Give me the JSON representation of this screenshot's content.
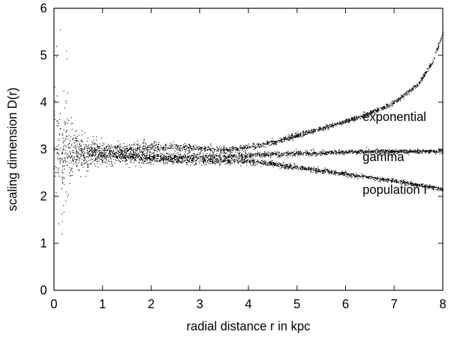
{
  "chart_data": {
    "type": "scatter",
    "title": "",
    "xlabel": "radial distance r in kpc",
    "ylabel": "scaling dimension D(r)",
    "xlim": [
      0,
      8
    ],
    "ylim": [
      0,
      6
    ],
    "xticks": [
      "0",
      "1",
      "2",
      "3",
      "4",
      "5",
      "6",
      "7",
      "8"
    ],
    "yticks": [
      "0",
      "1",
      "2",
      "3",
      "4",
      "5",
      "6"
    ],
    "grid": false,
    "legend": "none",
    "point_color": "#000000",
    "series": [
      {
        "name": "exponential",
        "x": [
          0.2,
          0.5,
          1.0,
          1.5,
          2.0,
          2.5,
          3.0,
          3.5,
          4.0,
          4.5,
          5.0,
          5.5,
          6.0,
          6.5,
          7.0,
          7.5,
          7.8,
          8.0
        ],
        "y": [
          3.05,
          3.0,
          3.0,
          3.02,
          3.05,
          3.05,
          3.02,
          3.0,
          3.05,
          3.15,
          3.3,
          3.45,
          3.6,
          3.78,
          4.0,
          4.4,
          4.9,
          5.5
        ]
      },
      {
        "name": "gamma",
        "x": [
          0.2,
          0.5,
          1.0,
          1.5,
          2.0,
          2.5,
          3.0,
          3.5,
          4.0,
          4.5,
          5.0,
          5.5,
          6.0,
          6.5,
          7.0,
          7.5,
          8.0
        ],
        "y": [
          2.95,
          2.92,
          2.9,
          2.87,
          2.85,
          2.85,
          2.85,
          2.86,
          2.88,
          2.9,
          2.92,
          2.93,
          2.95,
          2.96,
          2.96,
          2.96,
          2.97
        ]
      },
      {
        "name": "population I",
        "x": [
          0.2,
          0.5,
          1.0,
          1.5,
          2.0,
          2.5,
          3.0,
          3.5,
          4.0,
          4.5,
          5.0,
          5.5,
          6.0,
          6.5,
          7.0,
          7.5,
          8.0
        ],
        "y": [
          2.95,
          2.9,
          2.87,
          2.83,
          2.8,
          2.77,
          2.76,
          2.76,
          2.75,
          2.7,
          2.62,
          2.55,
          2.48,
          2.4,
          2.33,
          2.25,
          2.15
        ]
      }
    ],
    "annotations": [
      {
        "text": "exponential",
        "x": 6.35,
        "y": 3.6
      },
      {
        "text": "gamma",
        "x": 6.35,
        "y": 2.75
      },
      {
        "text": "population I",
        "x": 6.35,
        "y": 2.05
      }
    ]
  }
}
